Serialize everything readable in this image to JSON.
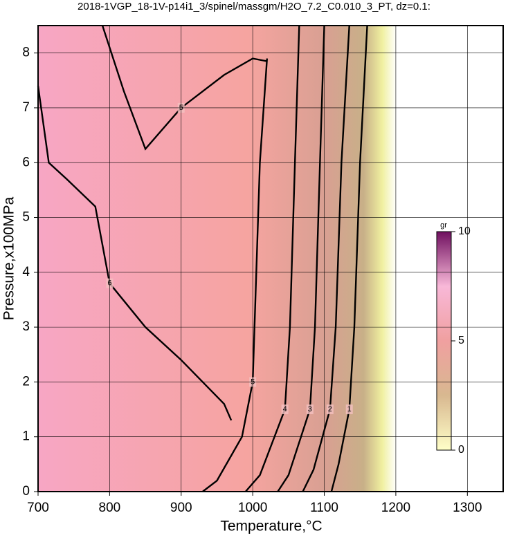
{
  "chart_data": {
    "type": "contour",
    "title": "2018-1VGP_18-1V-p14i1_3/spinel/massgm/H2O_7.2_C0.010_3_PT, dz=0.1:",
    "x_label": "Temperature,°C",
    "y_label": "Pressure,x100MPa",
    "xlim": [
      700,
      1350
    ],
    "ylim": [
      0,
      8.5
    ],
    "xticks": [
      700,
      800,
      900,
      1000,
      1100,
      1200,
      1300
    ],
    "yticks": [
      0,
      1,
      2,
      3,
      4,
      5,
      6,
      7,
      8
    ],
    "grid": true,
    "contours": [
      {
        "level": 1,
        "x": [
          1160,
          1150,
          1142,
          1135,
          1120,
          1110
        ],
        "y": [
          8.5,
          6,
          3,
          1.5,
          0.5,
          0
        ]
      },
      {
        "level": 2,
        "x": [
          1135,
          1124,
          1116,
          1108,
          1085,
          1070
        ],
        "y": [
          8.5,
          6,
          3,
          1.5,
          0.4,
          0
        ]
      },
      {
        "level": 3,
        "x": [
          1100,
          1094,
          1087,
          1080,
          1050,
          1035
        ],
        "y": [
          8.5,
          6,
          3,
          1.5,
          0.3,
          0
        ]
      },
      {
        "level": 4,
        "x": [
          1065,
          1059,
          1052,
          1045,
          1010,
          990
        ],
        "y": [
          8.5,
          6,
          3,
          1.5,
          0.3,
          0
        ]
      },
      {
        "level": 5,
        "x": [
          1020,
          1010,
          1005,
          1000,
          985,
          950,
          930
        ],
        "y": [
          7.9,
          6,
          4,
          2,
          1,
          0.2,
          0
        ]
      },
      {
        "level": 5,
        "x": [
          790,
          820,
          850,
          900,
          960,
          1000,
          1020
        ],
        "y": [
          8.5,
          7.3,
          6.25,
          7,
          7.6,
          7.9,
          7.85
        ]
      },
      {
        "level": 6,
        "x": [
          700,
          715,
          740,
          780,
          790,
          800,
          850,
          900,
          960,
          970
        ],
        "y": [
          7.4,
          6,
          5.7,
          5.2,
          4.5,
          3.8,
          3,
          2.4,
          1.6,
          1.3
        ]
      }
    ],
    "colorbar": {
      "label": "gr",
      "lim": [
        0,
        10
      ],
      "ticks": [
        0,
        5,
        10
      ]
    }
  }
}
